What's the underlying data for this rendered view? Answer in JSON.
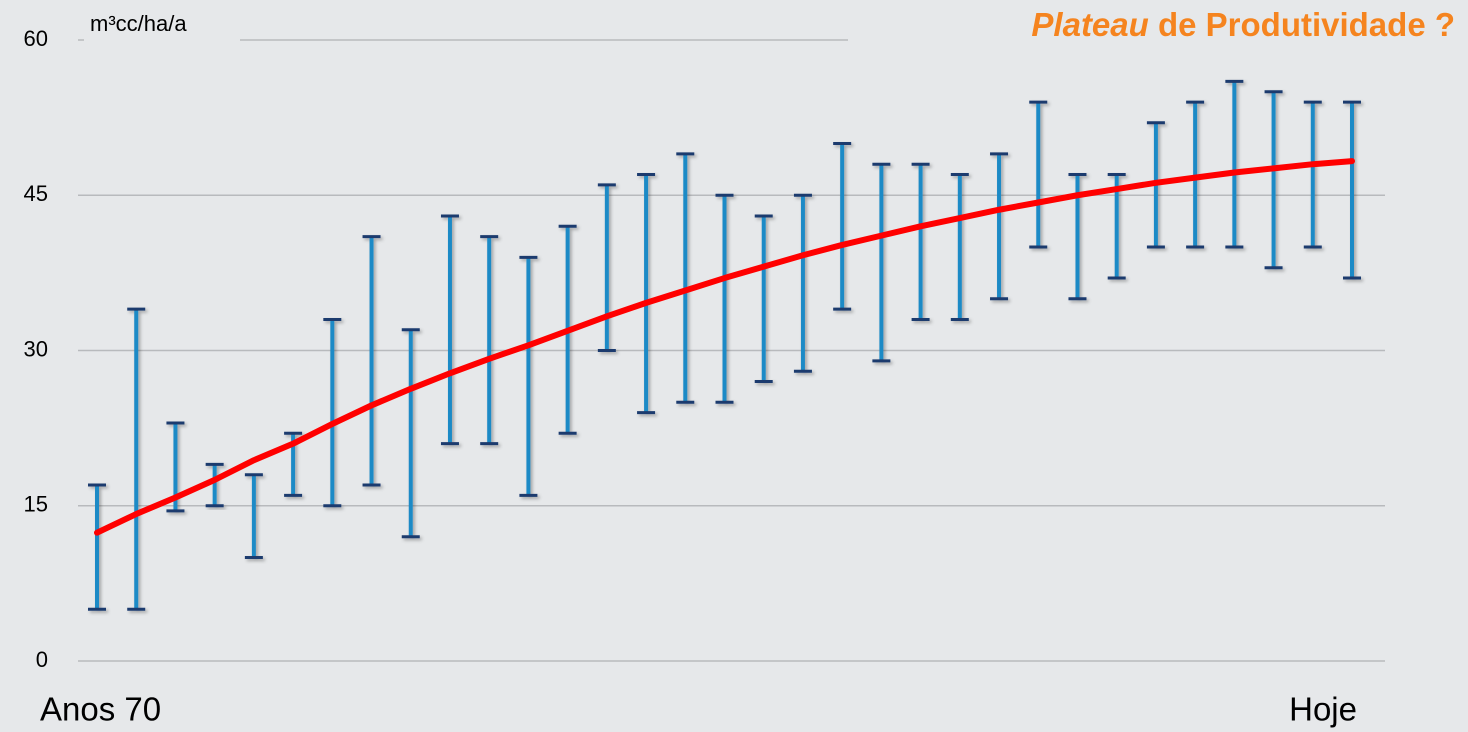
{
  "chart_data": {
    "type": "range",
    "title": "Plateau de Produtividade ?",
    "y_label": "m³cc/ha/a",
    "categories": [
      "Anos 70",
      null,
      null,
      null,
      null,
      null,
      null,
      null,
      null,
      null,
      null,
      null,
      null,
      null,
      null,
      null,
      null,
      null,
      null,
      null,
      null,
      null,
      null,
      null,
      null,
      null,
      null,
      null,
      null,
      null,
      null,
      null,
      "Hoje"
    ],
    "low": [
      5,
      5,
      14.5,
      15,
      10,
      16,
      15,
      17,
      12,
      21,
      21,
      16,
      22,
      30,
      24,
      25,
      25,
      27,
      28,
      34,
      29,
      33,
      33,
      35,
      40,
      35,
      37,
      40,
      40,
      40,
      38,
      40,
      37
    ],
    "high": [
      17,
      34,
      23,
      19,
      18,
      22,
      33,
      41,
      32,
      43,
      41,
      39,
      42,
      46,
      47,
      49,
      45,
      43,
      45,
      50,
      48,
      48,
      47,
      49,
      54,
      47,
      47,
      52,
      54,
      56,
      55,
      54,
      54
    ],
    "trend": [
      12.4,
      14.2,
      15.8,
      17.5,
      19.4,
      21.0,
      22.9,
      24.7,
      26.3,
      27.8,
      29.2,
      30.5,
      31.9,
      33.3,
      34.6,
      35.8,
      37.0,
      38.1,
      39.2,
      40.2,
      41.1,
      42.0,
      42.8,
      43.6,
      44.3,
      45.0,
      45.6,
      46.2,
      46.7,
      47.2,
      47.6,
      48.0,
      48.3
    ],
    "range_color": "#1f8ac6",
    "cap_color": "#1b3b6e",
    "trend_color": "#ff0000",
    "title_color": "#f5841f",
    "ylim": [
      0,
      60
    ],
    "yticks": [
      0,
      15,
      30,
      45,
      60
    ],
    "grid": true
  }
}
